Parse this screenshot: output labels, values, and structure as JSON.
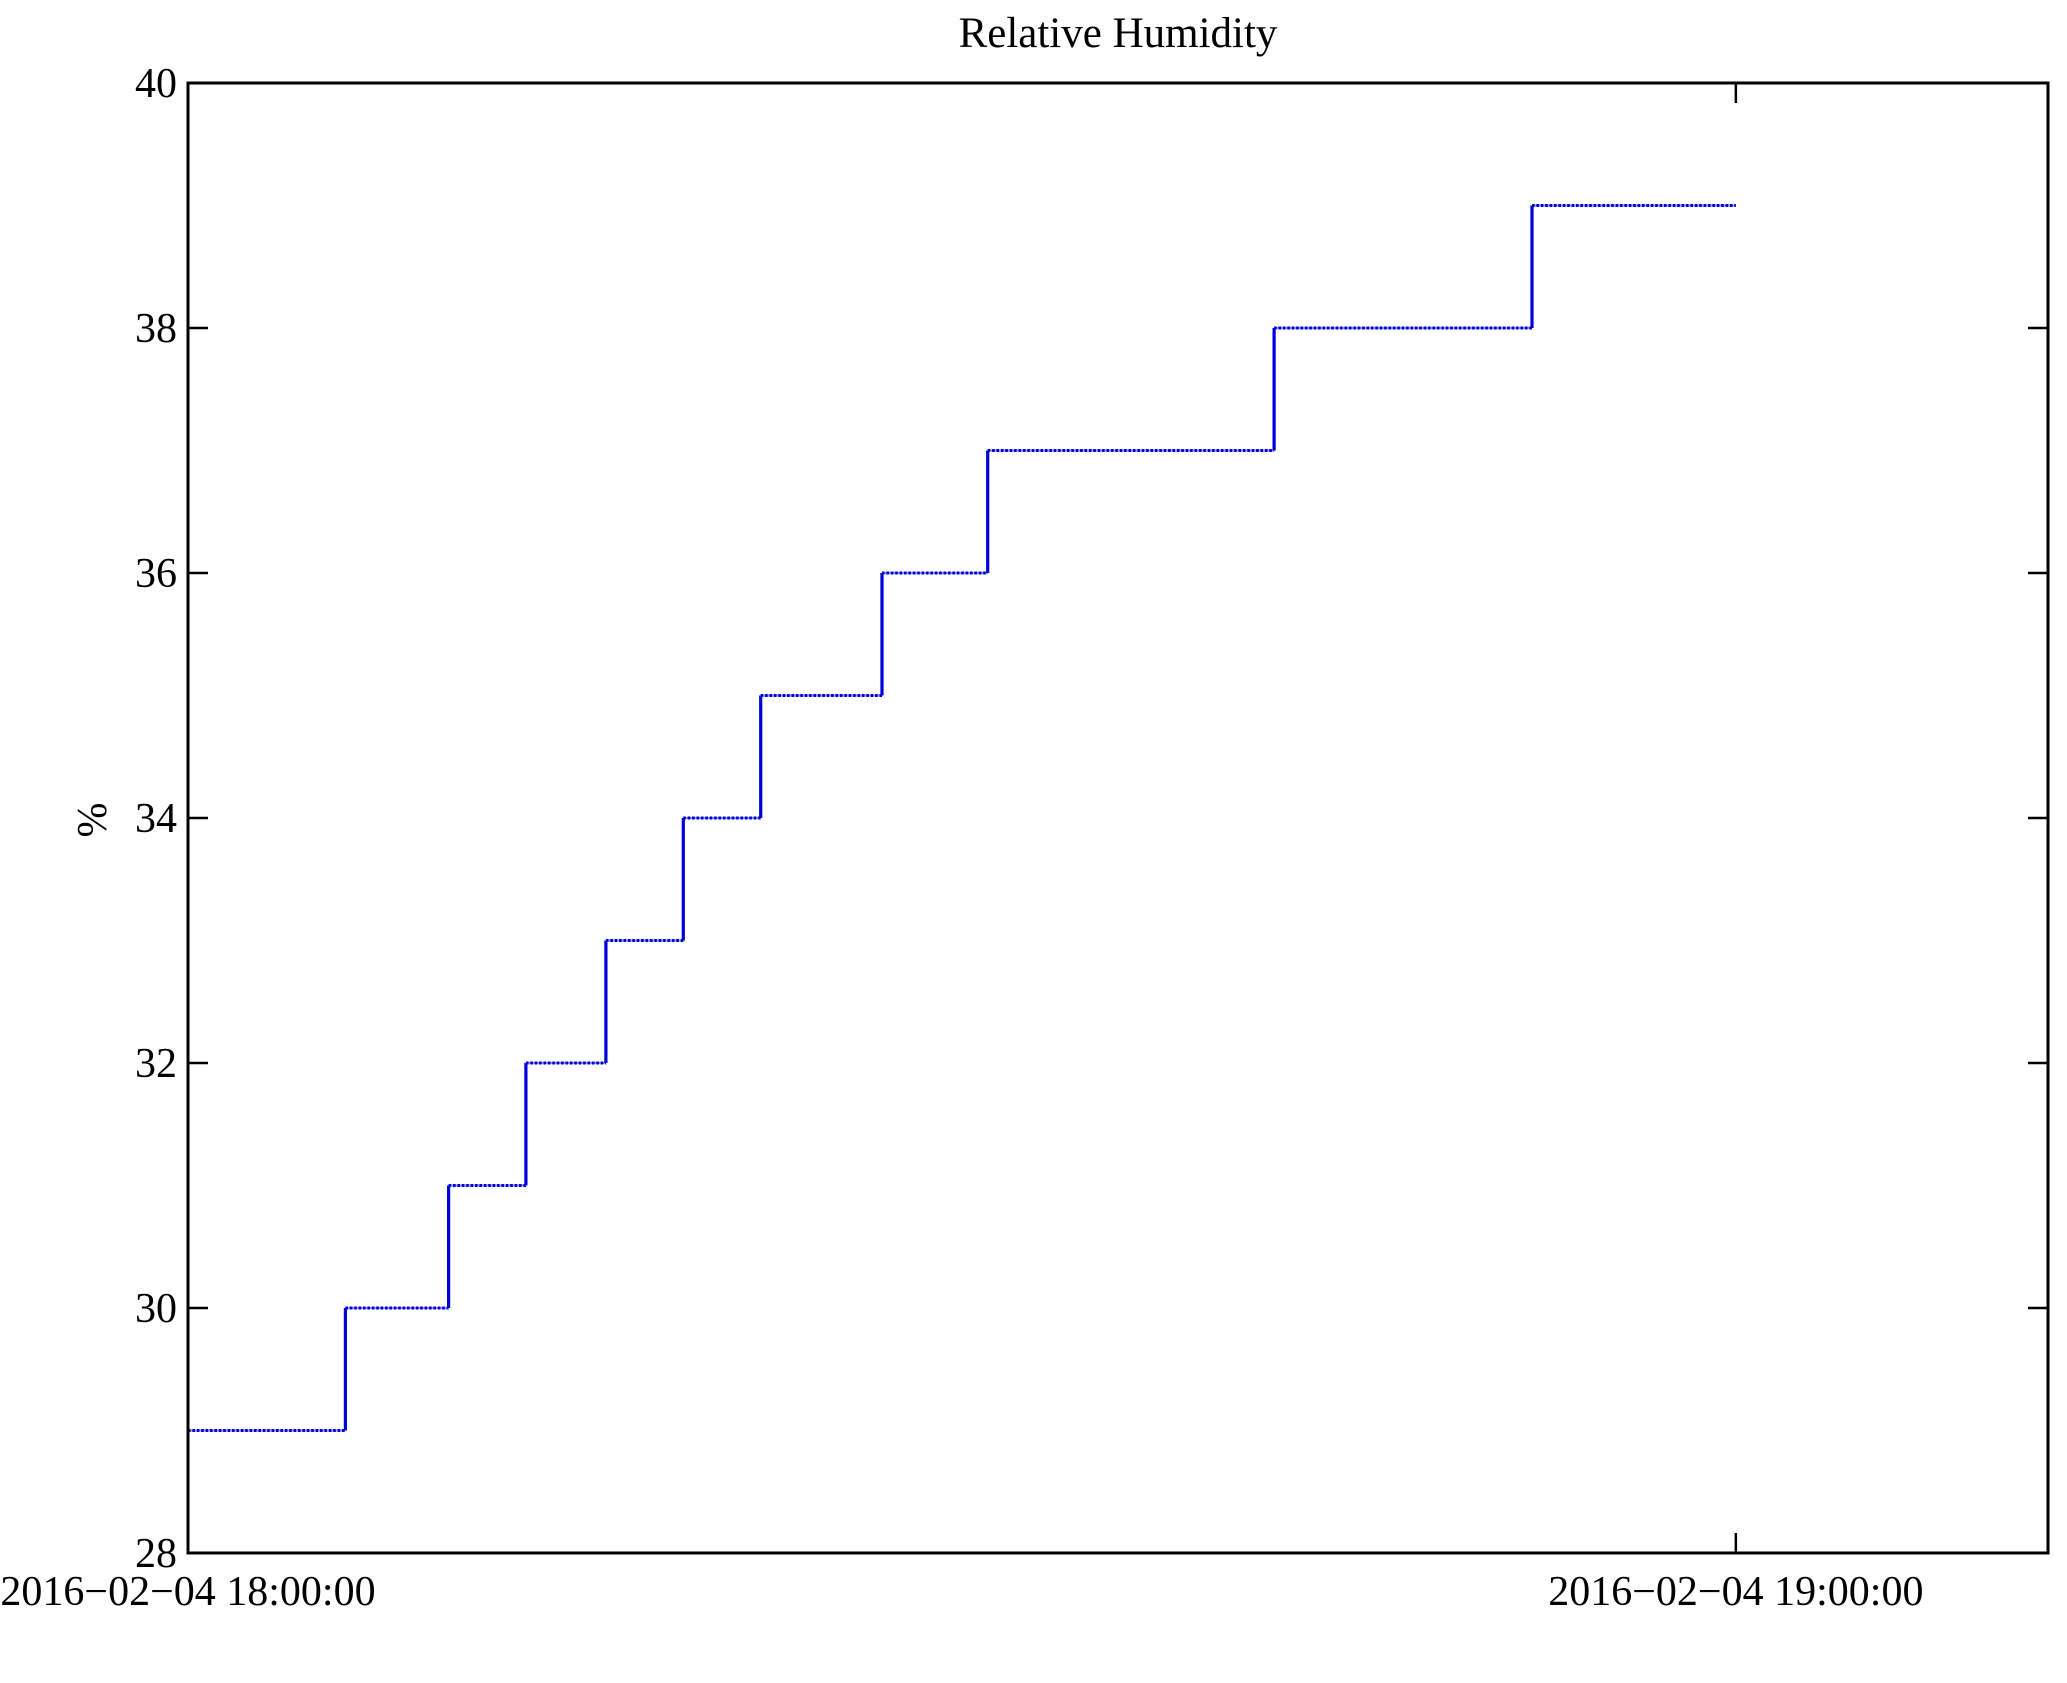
{
  "figure": {
    "background": "#ffffff"
  },
  "chart_data": {
    "type": "line",
    "line_style": "step-post",
    "title": "Relative Humidity",
    "xlabel": "",
    "ylabel": "%",
    "grid": false,
    "legend": false,
    "box": true,
    "tick_direction": "in",
    "axis_color": "#000000",
    "line_color": "#0000d8",
    "line_halo_color": "#8f8fff",
    "ylim": [
      28,
      40
    ],
    "yticks": [
      28,
      30,
      32,
      34,
      36,
      38,
      40
    ],
    "xlim_minutes": [
      0,
      72.1
    ],
    "xticks": [
      {
        "minutes": 0,
        "label": "2016−02−04 18:00:00"
      },
      {
        "minutes": 60,
        "label": "2016−02−04 19:00:00"
      }
    ],
    "series": [
      {
        "name": "Relative Humidity",
        "unit": "%",
        "points_minutes_value": [
          [
            0,
            29
          ],
          [
            6.1,
            30
          ],
          [
            10.1,
            31
          ],
          [
            13.1,
            32
          ],
          [
            16.2,
            33
          ],
          [
            19.2,
            34
          ],
          [
            22.2,
            35
          ],
          [
            26.9,
            36
          ],
          [
            31.0,
            37
          ],
          [
            42.1,
            38
          ],
          [
            52.1,
            39
          ]
        ],
        "end_minutes": 60.0
      }
    ]
  }
}
